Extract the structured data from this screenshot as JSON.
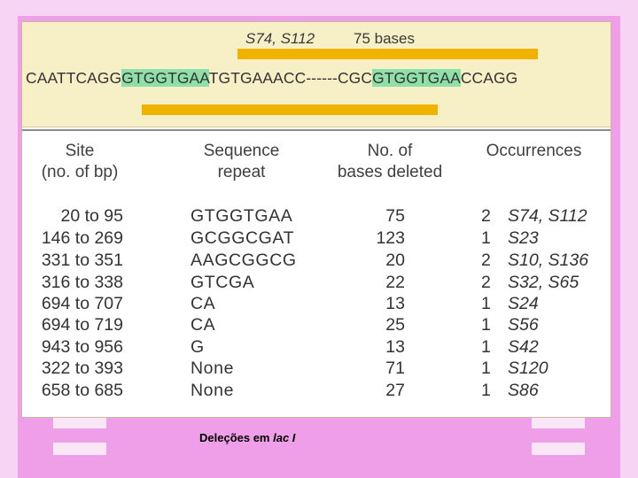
{
  "figure": {
    "strain_label": "S74, S112",
    "bases_label": "75 bases",
    "sequence": {
      "part1": "CAATTCAGG",
      "repeat1": "GTGGTGAA",
      "part2": "TGTGAAACC------CGC",
      "repeat2": "GTGGTGAA",
      "part3": "CCAGG"
    }
  },
  "table": {
    "headers": {
      "site": [
        "Site",
        "(no. of bp)"
      ],
      "sequence_repeat": [
        "Sequence",
        "repeat"
      ],
      "bases_deleted": [
        "No. of",
        "bases deleted"
      ],
      "occurrences": [
        "Occurrences"
      ]
    },
    "rows": [
      {
        "site": "20 to 95",
        "repeat": "GTGGTGAA",
        "bases": "75",
        "count": "2",
        "strains": "S74, S112"
      },
      {
        "site": "146 to 269",
        "repeat": "GCGGCGAT",
        "bases": "123",
        "count": "1",
        "strains": "S23"
      },
      {
        "site": "331 to 351",
        "repeat": "AAGCGGCG",
        "bases": "20",
        "count": "2",
        "strains": "S10, S136"
      },
      {
        "site": "316 to 338",
        "repeat": "GTCGA",
        "bases": "22",
        "count": "2",
        "strains": "S32, S65"
      },
      {
        "site": "694 to 707",
        "repeat": "CA",
        "bases": "13",
        "count": "1",
        "strains": "S24"
      },
      {
        "site": "694 to 719",
        "repeat": "CA",
        "bases": "25",
        "count": "1",
        "strains": "S56"
      },
      {
        "site": "943 to 956",
        "repeat": "G",
        "bases": "13",
        "count": "1",
        "strains": "S42"
      },
      {
        "site": "322 to 393",
        "repeat": "None",
        "bases": "71",
        "count": "1",
        "strains": "S120"
      },
      {
        "site": "658 to 685",
        "repeat": "None",
        "bases": "27",
        "count": "1",
        "strains": "S86"
      }
    ]
  },
  "caption": {
    "text": "Deleções em ",
    "gene": "lac I"
  },
  "colors": {
    "highlight": "#8fe0a8",
    "deletion_bar": "#f0b400",
    "panel": "#f7efc6",
    "background": "#ee9fe8"
  }
}
